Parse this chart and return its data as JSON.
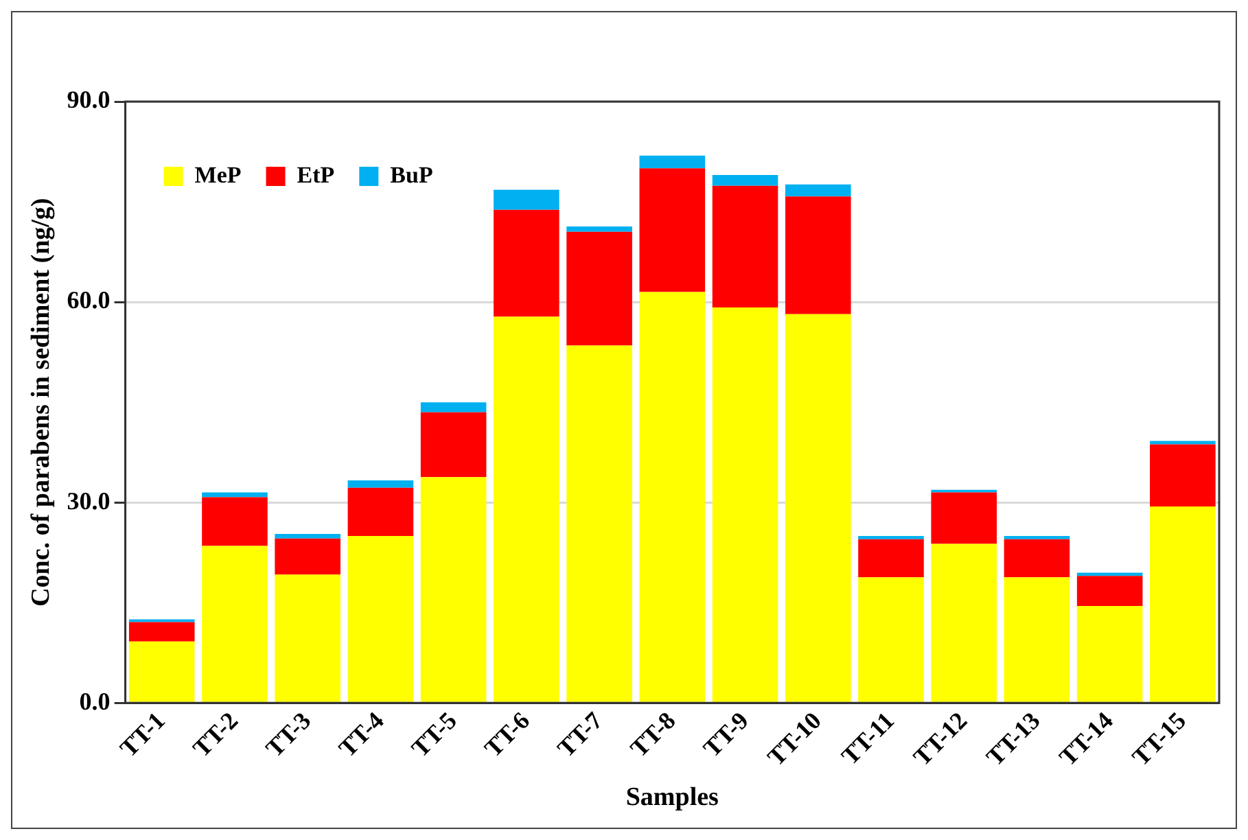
{
  "chart_data": {
    "type": "bar",
    "stacked": true,
    "xlabel": "Samples",
    "ylabel": "Conc. of parabens in sediment (ng/g)",
    "categories": [
      "TT-1",
      "TT-2",
      "TT-3",
      "TT-4",
      "TT-5",
      "TT-6",
      "TT-7",
      "TT-8",
      "TT-9",
      "TT-10",
      "TT-11",
      "TT-12",
      "TT-13",
      "TT-14",
      "TT-15"
    ],
    "series": [
      {
        "name": "MeP",
        "color": "#ffff00",
        "values": [
          9.2,
          23.5,
          19.2,
          25.0,
          33.8,
          57.8,
          53.5,
          61.5,
          59.2,
          58.2,
          18.8,
          23.8,
          18.8,
          14.5,
          29.4
        ]
      },
      {
        "name": "EtP",
        "color": "#ff0000",
        "values": [
          2.9,
          7.3,
          5.4,
          7.2,
          9.7,
          16.0,
          17.0,
          18.5,
          18.2,
          17.6,
          5.7,
          7.7,
          5.7,
          4.5,
          9.3
        ]
      },
      {
        "name": "BuP",
        "color": "#00b0f0",
        "values": [
          0.4,
          0.7,
          0.7,
          1.1,
          1.5,
          3.0,
          0.8,
          1.9,
          1.6,
          1.8,
          0.5,
          0.4,
          0.5,
          0.5,
          0.5
        ]
      }
    ],
    "ylim": [
      0,
      90
    ],
    "yticks": [
      {
        "value": 0,
        "label": "0.0"
      },
      {
        "value": 30,
        "label": "30.0"
      },
      {
        "value": 60,
        "label": "60.0"
      },
      {
        "value": 90,
        "label": "90.0"
      }
    ],
    "grid": "y",
    "legend": "top left"
  }
}
